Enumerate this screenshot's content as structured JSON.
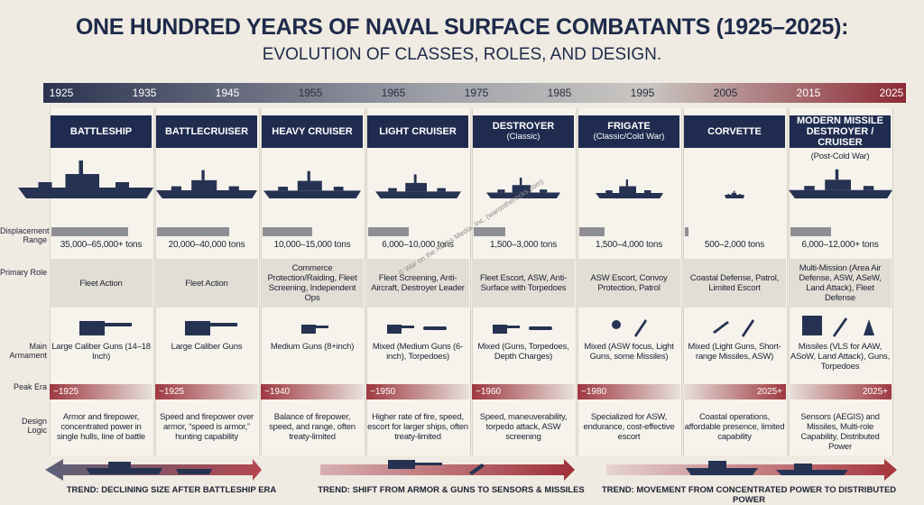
{
  "title": "ONE HUNDRED YEARS OF NAVAL SURFACE COMBATANTS (1925–2025):",
  "subtitle": "EVOLUTION OF CLASSES, ROLES, AND DESIGN.",
  "timeline": [
    1925,
    1935,
    1945,
    1955,
    1965,
    1975,
    1985,
    1995,
    2005,
    2015,
    2025
  ],
  "row_labels": [
    "Displacement Range",
    "Primary Role",
    "Main Armament",
    "Peak Era",
    "Design Logic"
  ],
  "credit": "© War on the Rocks Media, Inc. (warontherocks.com)",
  "columns": [
    {
      "name": "BATTLESHIP",
      "displacement": "35,000–65,000+ tons",
      "role": "Fleet Action",
      "armament": "Large Caliber Guns (14–18 Inch)",
      "peak_era": "~1925",
      "design_logic": "Armor and firepower, concentrated power in single hulls, line of battle"
    },
    {
      "name": "BATTLECRUISER",
      "displacement": "20,000–40,000 tons",
      "role": "Fleet Action",
      "armament": "Large Caliber Guns",
      "peak_era": "~1925",
      "design_logic": "Speed and firepower over armor, “speed is armor,” hunting capability"
    },
    {
      "name": "HEAVY CRUISER",
      "displacement": "10,000–15,000 tons",
      "role": "Commerce Protection/Raiding, Fleet Screening, Independent Ops",
      "armament": "Medium Guns (8+inch)",
      "peak_era": "~1940",
      "design_logic": "Balance of firepower, speed, and range, often treaty-limited"
    },
    {
      "name": "LIGHT CRUISER",
      "displacement": "6,000–10,000 tons",
      "role": "Fleet Screening, Anti-Aircraft, Destroyer Leader",
      "armament": "Mixed (Medium Guns (6-inch), Torpedoes)",
      "peak_era": "~1950",
      "design_logic": "Higher rate of fire, speed, escort for larger ships, often treaty-limited"
    },
    {
      "name": "DESTROYER",
      "subtitle": "(Classic)",
      "displacement": "1,500–3,000 tons",
      "role": "Fleet Escort, ASW, Anti-Surface with Torpedoes",
      "armament": "Mixed (Guns, Torpedoes, Depth Charges)",
      "peak_era": "~1960",
      "design_logic": "Speed, maneuverability, torpedo attack, ASW screening"
    },
    {
      "name": "FRIGATE",
      "subtitle": "(Classic/Cold War)",
      "displacement": "1,500–4,000 tons",
      "role": "ASW Escort, Convoy Protection, Patrol",
      "armament": "Mixed (ASW focus, Light Guns, some Missiles)",
      "peak_era": "~1980",
      "design_logic": "Specialized for ASW, endurance, cost-effective escort"
    },
    {
      "name": "CORVETTE",
      "displacement": "500–2,000 tons",
      "role": "Coastal Defense, Patrol, Limited Escort",
      "armament": "Mixed (Light Guns, Short-range Missiles, ASW)",
      "peak_era": "2025+",
      "design_logic": "Coastal operations, affordable presence, limited capability"
    },
    {
      "name": "MODERN MISSILE DESTROYER / CRUISER",
      "subtitle": "(Post-Cold War)",
      "displacement": "6,000–12,000+ tons",
      "role": "Multi-Mission (Area Air Defense, ASW, ASeW, Land Attack), Fleet Defense",
      "armament": "Missiles (VLS for AAW, ASoW, Land Attack), Guns, Torpedoes",
      "peak_era": "2025+",
      "design_logic": "Sensors (AEGIS) and Missiles, Multi-role Capability, Distributed Power"
    }
  ],
  "trends": [
    "TREND: DECLINING SIZE AFTER BATTLESHIP ERA",
    "TREND: SHIFT FROM ARMOR & GUNS TO SENSORS & MISSILES",
    "TREND: MOVEMENT FROM CONCENTRATED POWER TO DISTRIBUTED POWER"
  ]
}
